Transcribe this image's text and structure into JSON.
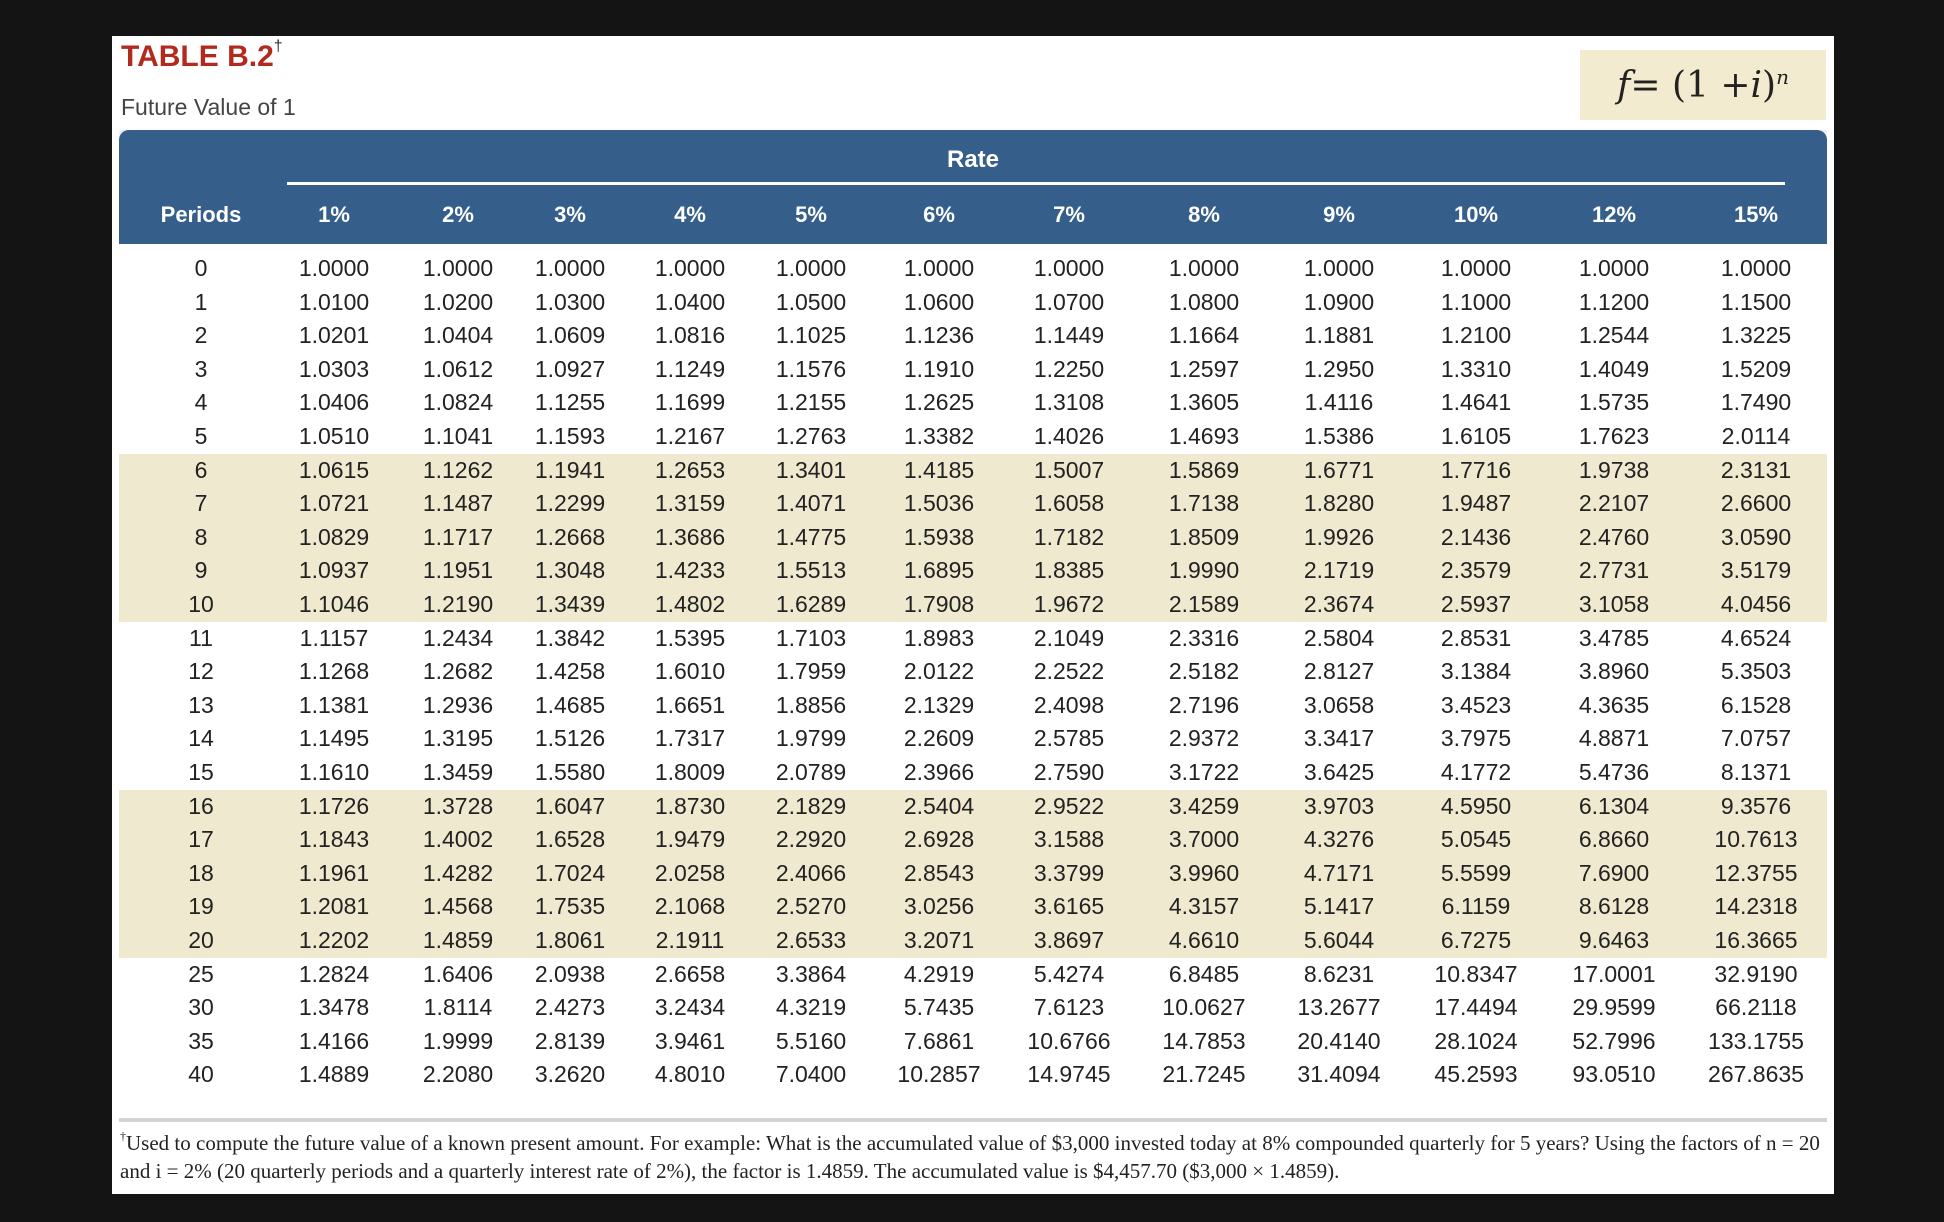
{
  "title": "TABLE B.2",
  "title_mark": "†",
  "subtitle": "Future Value of 1",
  "formula": {
    "lhs": "f",
    "eq": " = (1 + ",
    "var": "i",
    "rhs": ")",
    "exp": "n"
  },
  "table": {
    "rate_label": "Rate",
    "periods_label": "Periods",
    "rate_headers": [
      "1%",
      "2%",
      "3%",
      "4%",
      "5%",
      "6%",
      "7%",
      "8%",
      "9%",
      "10%",
      "12%",
      "15%"
    ],
    "rows": [
      [
        "0",
        "1.0000",
        "1.0000",
        "1.0000",
        "1.0000",
        "1.0000",
        "1.0000",
        "1.0000",
        "1.0000",
        "1.0000",
        "1.0000",
        "1.0000",
        "1.0000"
      ],
      [
        "1",
        "1.0100",
        "1.0200",
        "1.0300",
        "1.0400",
        "1.0500",
        "1.0600",
        "1.0700",
        "1.0800",
        "1.0900",
        "1.1000",
        "1.1200",
        "1.1500"
      ],
      [
        "2",
        "1.0201",
        "1.0404",
        "1.0609",
        "1.0816",
        "1.1025",
        "1.1236",
        "1.1449",
        "1.1664",
        "1.1881",
        "1.2100",
        "1.2544",
        "1.3225"
      ],
      [
        "3",
        "1.0303",
        "1.0612",
        "1.0927",
        "1.1249",
        "1.1576",
        "1.1910",
        "1.2250",
        "1.2597",
        "1.2950",
        "1.3310",
        "1.4049",
        "1.5209"
      ],
      [
        "4",
        "1.0406",
        "1.0824",
        "1.1255",
        "1.1699",
        "1.2155",
        "1.2625",
        "1.3108",
        "1.3605",
        "1.4116",
        "1.4641",
        "1.5735",
        "1.7490"
      ],
      [
        "5",
        "1.0510",
        "1.1041",
        "1.1593",
        "1.2167",
        "1.2763",
        "1.3382",
        "1.4026",
        "1.4693",
        "1.5386",
        "1.6105",
        "1.7623",
        "2.0114"
      ],
      [
        "6",
        "1.0615",
        "1.1262",
        "1.1941",
        "1.2653",
        "1.3401",
        "1.4185",
        "1.5007",
        "1.5869",
        "1.6771",
        "1.7716",
        "1.9738",
        "2.3131"
      ],
      [
        "7",
        "1.0721",
        "1.1487",
        "1.2299",
        "1.3159",
        "1.4071",
        "1.5036",
        "1.6058",
        "1.7138",
        "1.8280",
        "1.9487",
        "2.2107",
        "2.6600"
      ],
      [
        "8",
        "1.0829",
        "1.1717",
        "1.2668",
        "1.3686",
        "1.4775",
        "1.5938",
        "1.7182",
        "1.8509",
        "1.9926",
        "2.1436",
        "2.4760",
        "3.0590"
      ],
      [
        "9",
        "1.0937",
        "1.1951",
        "1.3048",
        "1.4233",
        "1.5513",
        "1.6895",
        "1.8385",
        "1.9990",
        "2.1719",
        "2.3579",
        "2.7731",
        "3.5179"
      ],
      [
        "10",
        "1.1046",
        "1.2190",
        "1.3439",
        "1.4802",
        "1.6289",
        "1.7908",
        "1.9672",
        "2.1589",
        "2.3674",
        "2.5937",
        "3.1058",
        "4.0456"
      ],
      [
        "11",
        "1.1157",
        "1.2434",
        "1.3842",
        "1.5395",
        "1.7103",
        "1.8983",
        "2.1049",
        "2.3316",
        "2.5804",
        "2.8531",
        "3.4785",
        "4.6524"
      ],
      [
        "12",
        "1.1268",
        "1.2682",
        "1.4258",
        "1.6010",
        "1.7959",
        "2.0122",
        "2.2522",
        "2.5182",
        "2.8127",
        "3.1384",
        "3.8960",
        "5.3503"
      ],
      [
        "13",
        "1.1381",
        "1.2936",
        "1.4685",
        "1.6651",
        "1.8856",
        "2.1329",
        "2.4098",
        "2.7196",
        "3.0658",
        "3.4523",
        "4.3635",
        "6.1528"
      ],
      [
        "14",
        "1.1495",
        "1.3195",
        "1.5126",
        "1.7317",
        "1.9799",
        "2.2609",
        "2.5785",
        "2.9372",
        "3.3417",
        "3.7975",
        "4.8871",
        "7.0757"
      ],
      [
        "15",
        "1.1610",
        "1.3459",
        "1.5580",
        "1.8009",
        "2.0789",
        "2.3966",
        "2.7590",
        "3.1722",
        "3.6425",
        "4.1772",
        "5.4736",
        "8.1371"
      ],
      [
        "16",
        "1.1726",
        "1.3728",
        "1.6047",
        "1.8730",
        "2.1829",
        "2.5404",
        "2.9522",
        "3.4259",
        "3.9703",
        "4.5950",
        "6.1304",
        "9.3576"
      ],
      [
        "17",
        "1.1843",
        "1.4002",
        "1.6528",
        "1.9479",
        "2.2920",
        "2.6928",
        "3.1588",
        "3.7000",
        "4.3276",
        "5.0545",
        "6.8660",
        "10.7613"
      ],
      [
        "18",
        "1.1961",
        "1.4282",
        "1.7024",
        "2.0258",
        "2.4066",
        "2.8543",
        "3.3799",
        "3.9960",
        "4.7171",
        "5.5599",
        "7.6900",
        "12.3755"
      ],
      [
        "19",
        "1.2081",
        "1.4568",
        "1.7535",
        "2.1068",
        "2.5270",
        "3.0256",
        "3.6165",
        "4.3157",
        "5.1417",
        "6.1159",
        "8.6128",
        "14.2318"
      ],
      [
        "20",
        "1.2202",
        "1.4859",
        "1.8061",
        "2.1911",
        "2.6533",
        "3.2071",
        "3.8697",
        "4.6610",
        "5.6044",
        "6.7275",
        "9.6463",
        "16.3665"
      ],
      [
        "25",
        "1.2824",
        "1.6406",
        "2.0938",
        "2.6658",
        "3.3864",
        "4.2919",
        "5.4274",
        "6.8485",
        "8.6231",
        "10.8347",
        "17.0001",
        "32.9190"
      ],
      [
        "30",
        "1.3478",
        "1.8114",
        "2.4273",
        "3.2434",
        "4.3219",
        "5.7435",
        "7.6123",
        "10.0627",
        "13.2677",
        "17.4494",
        "29.9599",
        "66.2118"
      ],
      [
        "35",
        "1.4166",
        "1.9999",
        "2.8139",
        "3.9461",
        "5.5160",
        "7.6861",
        "10.6766",
        "14.7853",
        "20.4140",
        "28.1024",
        "52.7996",
        "133.1755"
      ],
      [
        "40",
        "1.4889",
        "2.2080",
        "3.2620",
        "4.8010",
        "7.0400",
        "10.2857",
        "14.9745",
        "21.7245",
        "31.4094",
        "45.2593",
        "93.0510",
        "267.8635"
      ]
    ]
  },
  "footnote": {
    "mark": "†",
    "text": "Used to compute the future value of a known present amount. For example: What is the accumulated value of $3,000 invested today at 8% compounded quarterly for 5 years? Using the factors of n = 20 and i = 2% (20 quarterly periods and a quarterly interest rate of 2%), the factor is 1.4859. The accumulated value is $4,457.70 ($3,000 × 1.4859)."
  }
}
